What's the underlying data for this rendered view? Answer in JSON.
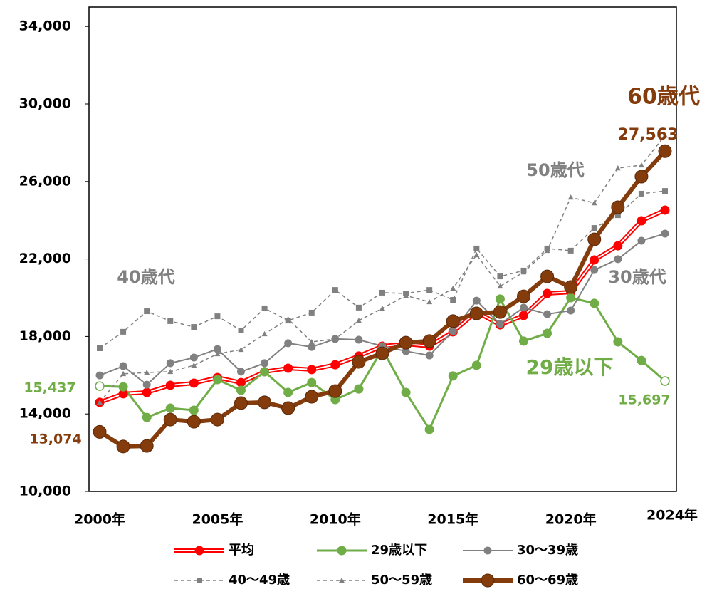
{
  "chart_data": {
    "type": "line",
    "categories": [
      "2000年",
      null,
      null,
      null,
      null,
      "2005年",
      null,
      null,
      null,
      null,
      "2010年",
      null,
      null,
      null,
      null,
      "2015年",
      null,
      null,
      null,
      null,
      "2020年",
      null,
      null,
      null,
      "2024年"
    ],
    "ylim": [
      10000,
      35000
    ],
    "yticks": [
      {
        "value": 10000,
        "label": "10,000"
      },
      {
        "value": 14000,
        "label": "14,000"
      },
      {
        "value": 18000,
        "label": "18,000"
      },
      {
        "value": 22000,
        "label": "22,000"
      },
      {
        "value": 26000,
        "label": "26,000"
      },
      {
        "value": 30000,
        "label": "30,000"
      },
      {
        "value": 34000,
        "label": "34,000"
      }
    ],
    "grid": false,
    "legend": "bottom",
    "series": [
      {
        "name": "平均",
        "color": "#ff0000",
        "marker": "circle",
        "dash": false,
        "values": [
          14600,
          15040,
          15110,
          15480,
          15590,
          15880,
          15620,
          16180,
          16360,
          16290,
          16540,
          16990,
          17500,
          17610,
          17500,
          18240,
          19260,
          18600,
          19080,
          20220,
          20290,
          21950,
          22680,
          23970,
          24520
        ]
      },
      {
        "name": "29歳以下",
        "color": "#70ad47",
        "marker": "circle",
        "dash": false,
        "values": [
          15437,
          15400,
          13820,
          14300,
          14190,
          15770,
          15220,
          16180,
          15110,
          15620,
          14740,
          15290,
          17350,
          15110,
          13200,
          15960,
          16510,
          19930,
          17760,
          18160,
          20000,
          19710,
          17720,
          16760,
          15697
        ],
        "value_labels": [
          "15,437",
          null,
          null,
          null,
          null,
          null,
          null,
          null,
          null,
          null,
          null,
          null,
          null,
          null,
          null,
          null,
          null,
          null,
          null,
          null,
          null,
          null,
          null,
          null,
          "15,697"
        ]
      },
      {
        "name": "30〜39歳",
        "color": "#808080",
        "marker": "circle",
        "dash": false,
        "values": [
          15990,
          16470,
          15510,
          16620,
          16910,
          17350,
          16180,
          16620,
          17650,
          17460,
          17870,
          17830,
          17500,
          17240,
          17020,
          18270,
          19850,
          18640,
          19490,
          19150,
          19340,
          21430,
          21990,
          22940,
          23310
        ]
      },
      {
        "name": "40〜49歳",
        "color": "#808080",
        "marker": "square",
        "dash": true,
        "values": [
          17390,
          18240,
          19300,
          18790,
          18490,
          19040,
          18310,
          19450,
          18820,
          19230,
          20400,
          19490,
          20260,
          20220,
          20400,
          19890,
          22540,
          21100,
          21400,
          22540,
          22430,
          23600,
          24260,
          25370,
          25510
        ]
      },
      {
        "name": "50〜59歳",
        "color": "#808080",
        "marker": "triangle",
        "dash": true,
        "values": [
          14600,
          16070,
          16140,
          16180,
          16510,
          17100,
          17320,
          18130,
          18900,
          17720,
          17870,
          18820,
          19450,
          20110,
          19780,
          20480,
          22210,
          20590,
          21320,
          22430,
          25180,
          24890,
          26690,
          26840,
          28380
        ]
      },
      {
        "name": "60〜69歳",
        "color": "#843c0c",
        "marker": "circle",
        "dash": false,
        "values": [
          13074,
          12320,
          12350,
          13710,
          13600,
          13710,
          14560,
          14600,
          14300,
          14890,
          15180,
          16690,
          17130,
          17680,
          17760,
          18790,
          19190,
          19260,
          20070,
          21100,
          20550,
          23010,
          24670,
          26250,
          27563
        ],
        "value_labels": [
          "13,074",
          null,
          null,
          null,
          null,
          null,
          null,
          null,
          null,
          null,
          null,
          null,
          null,
          null,
          null,
          null,
          null,
          null,
          null,
          null,
          null,
          null,
          null,
          null,
          "27,563"
        ]
      }
    ],
    "annotations": [
      {
        "text": "40歳代",
        "color": "#808080"
      },
      {
        "text": "50歳代",
        "color": "#808080"
      },
      {
        "text": "30歳代",
        "color": "#808080"
      },
      {
        "text": "29歳以下",
        "color": "#70ad47"
      },
      {
        "text": "60歳代",
        "color": "#843c0c"
      }
    ]
  }
}
